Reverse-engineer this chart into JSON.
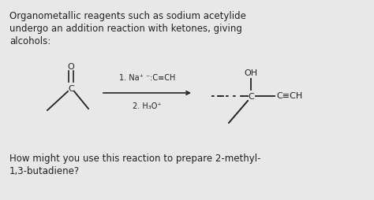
{
  "bg_color": "#e8e8e8",
  "text_color": "#222222",
  "title_lines": [
    "Organometallic reagents such as sodium acetylide",
    "undergo an addition reaction with ketones, giving",
    "alcohols:"
  ],
  "footer_lines": [
    "How might you use this reaction to prepare 2-methyl-",
    "1,3-butadiene?"
  ],
  "arrow_label1": "1. Na⁺ ⁻:C≡CH",
  "arrow_label2": "2. H₃O⁺",
  "font_size_body": 8.5,
  "font_size_chem": 7.5
}
